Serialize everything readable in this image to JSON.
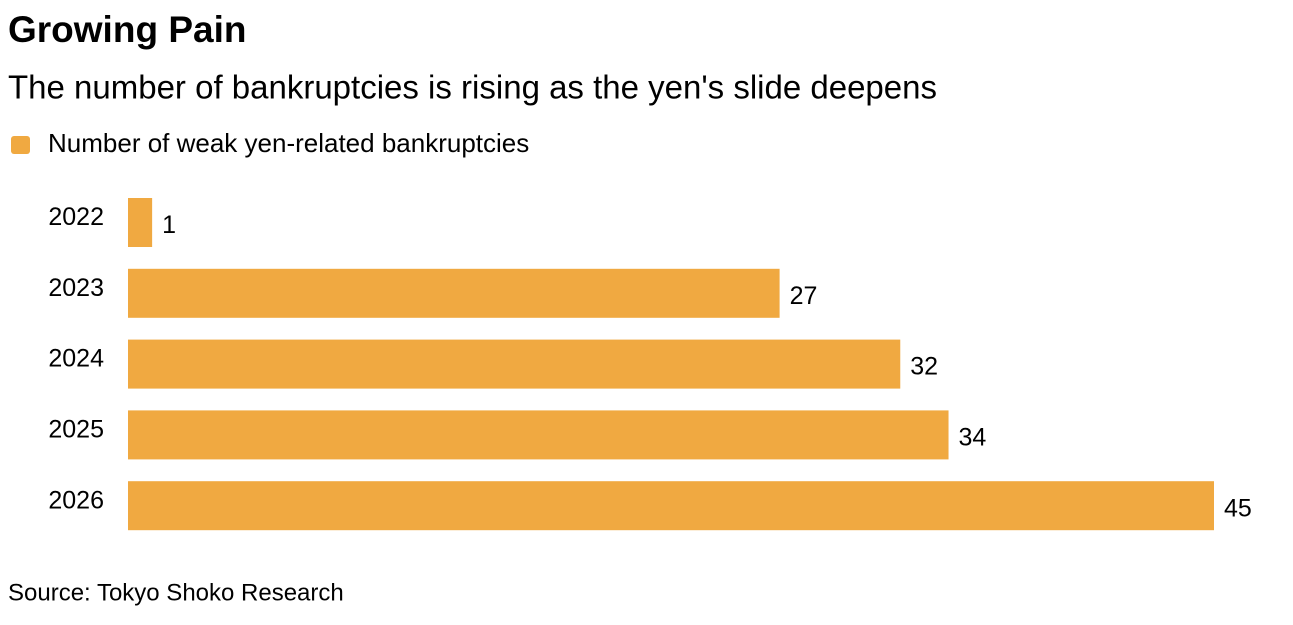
{
  "chart_data": {
    "type": "hbar",
    "title": "Growing Pain",
    "subtitle": "The number of bankruptcies is rising as the yen's slide deepens",
    "categories": [
      "2022",
      "2023",
      "2024",
      "2025",
      "2026"
    ],
    "series": [
      {
        "name": "Number of weak yen-related bankruptcies",
        "color": "#f0a941",
        "values": [
          1,
          27,
          32,
          34,
          45
        ]
      }
    ],
    "source": "Source: Tokyo Shoko Research"
  }
}
